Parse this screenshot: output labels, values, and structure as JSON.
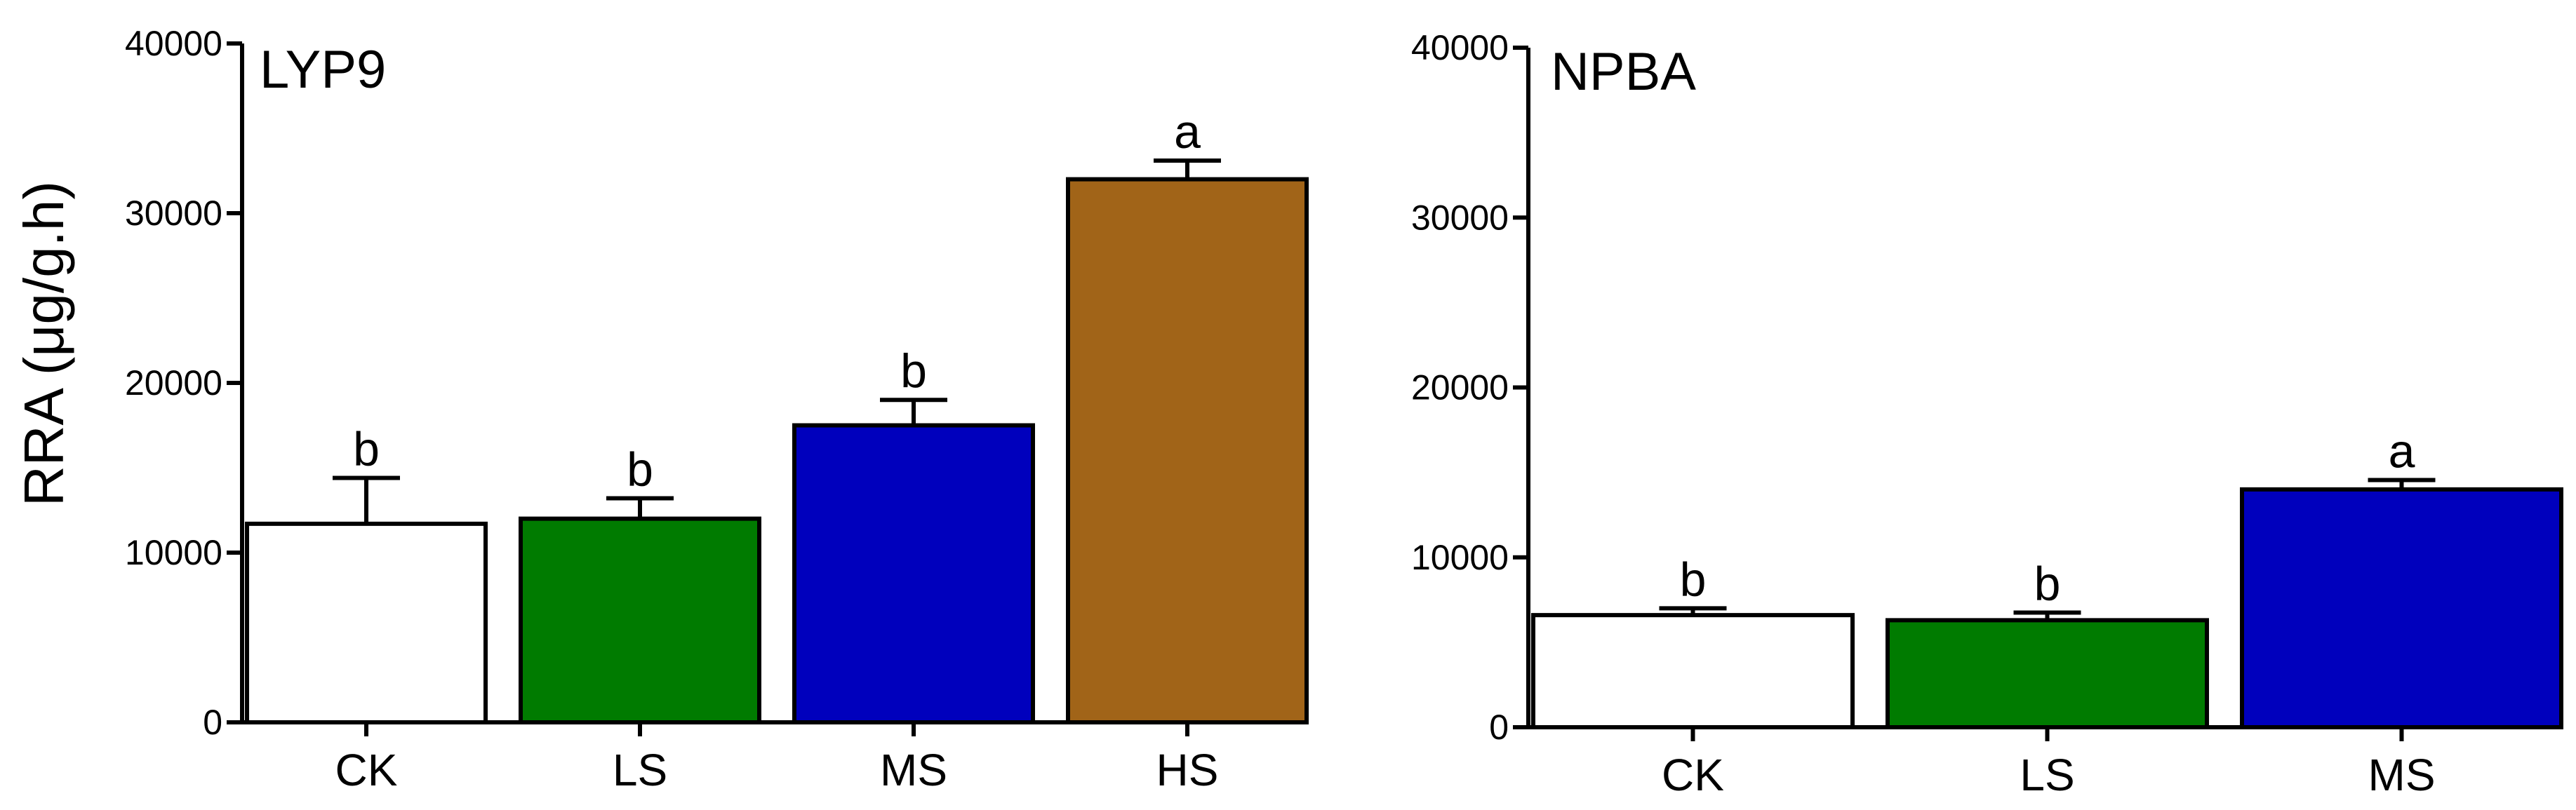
{
  "chart_data": [
    {
      "type": "bar",
      "title": "LYP9",
      "ylabel": "RRA (μg/g.h)",
      "xlabel": "",
      "categories": [
        "CK",
        "LS",
        "MS",
        "HS"
      ],
      "values": [
        11700,
        12000,
        17500,
        32000
      ],
      "errors": [
        2700,
        1200,
        1500,
        1100
      ],
      "significance": [
        "b",
        "b",
        "b",
        "a"
      ],
      "colors": [
        "#ffffff",
        "#007b00",
        "#0000bd",
        "#a16418"
      ],
      "ylim": [
        0,
        40000
      ],
      "yticks": [
        0,
        10000,
        20000,
        30000,
        40000
      ],
      "grid": false
    },
    {
      "type": "bar",
      "title": "NPBA",
      "ylabel": "",
      "xlabel": "",
      "categories": [
        "CK",
        "LS",
        "MS"
      ],
      "values": [
        6600,
        6300,
        14000
      ],
      "errors": [
        400,
        450,
        550
      ],
      "significance": [
        "b",
        "b",
        "a"
      ],
      "colors": [
        "#ffffff",
        "#007b00",
        "#0000bd"
      ],
      "ylim": [
        0,
        40000
      ],
      "yticks": [
        0,
        10000,
        20000,
        30000,
        40000
      ],
      "grid": false
    }
  ]
}
